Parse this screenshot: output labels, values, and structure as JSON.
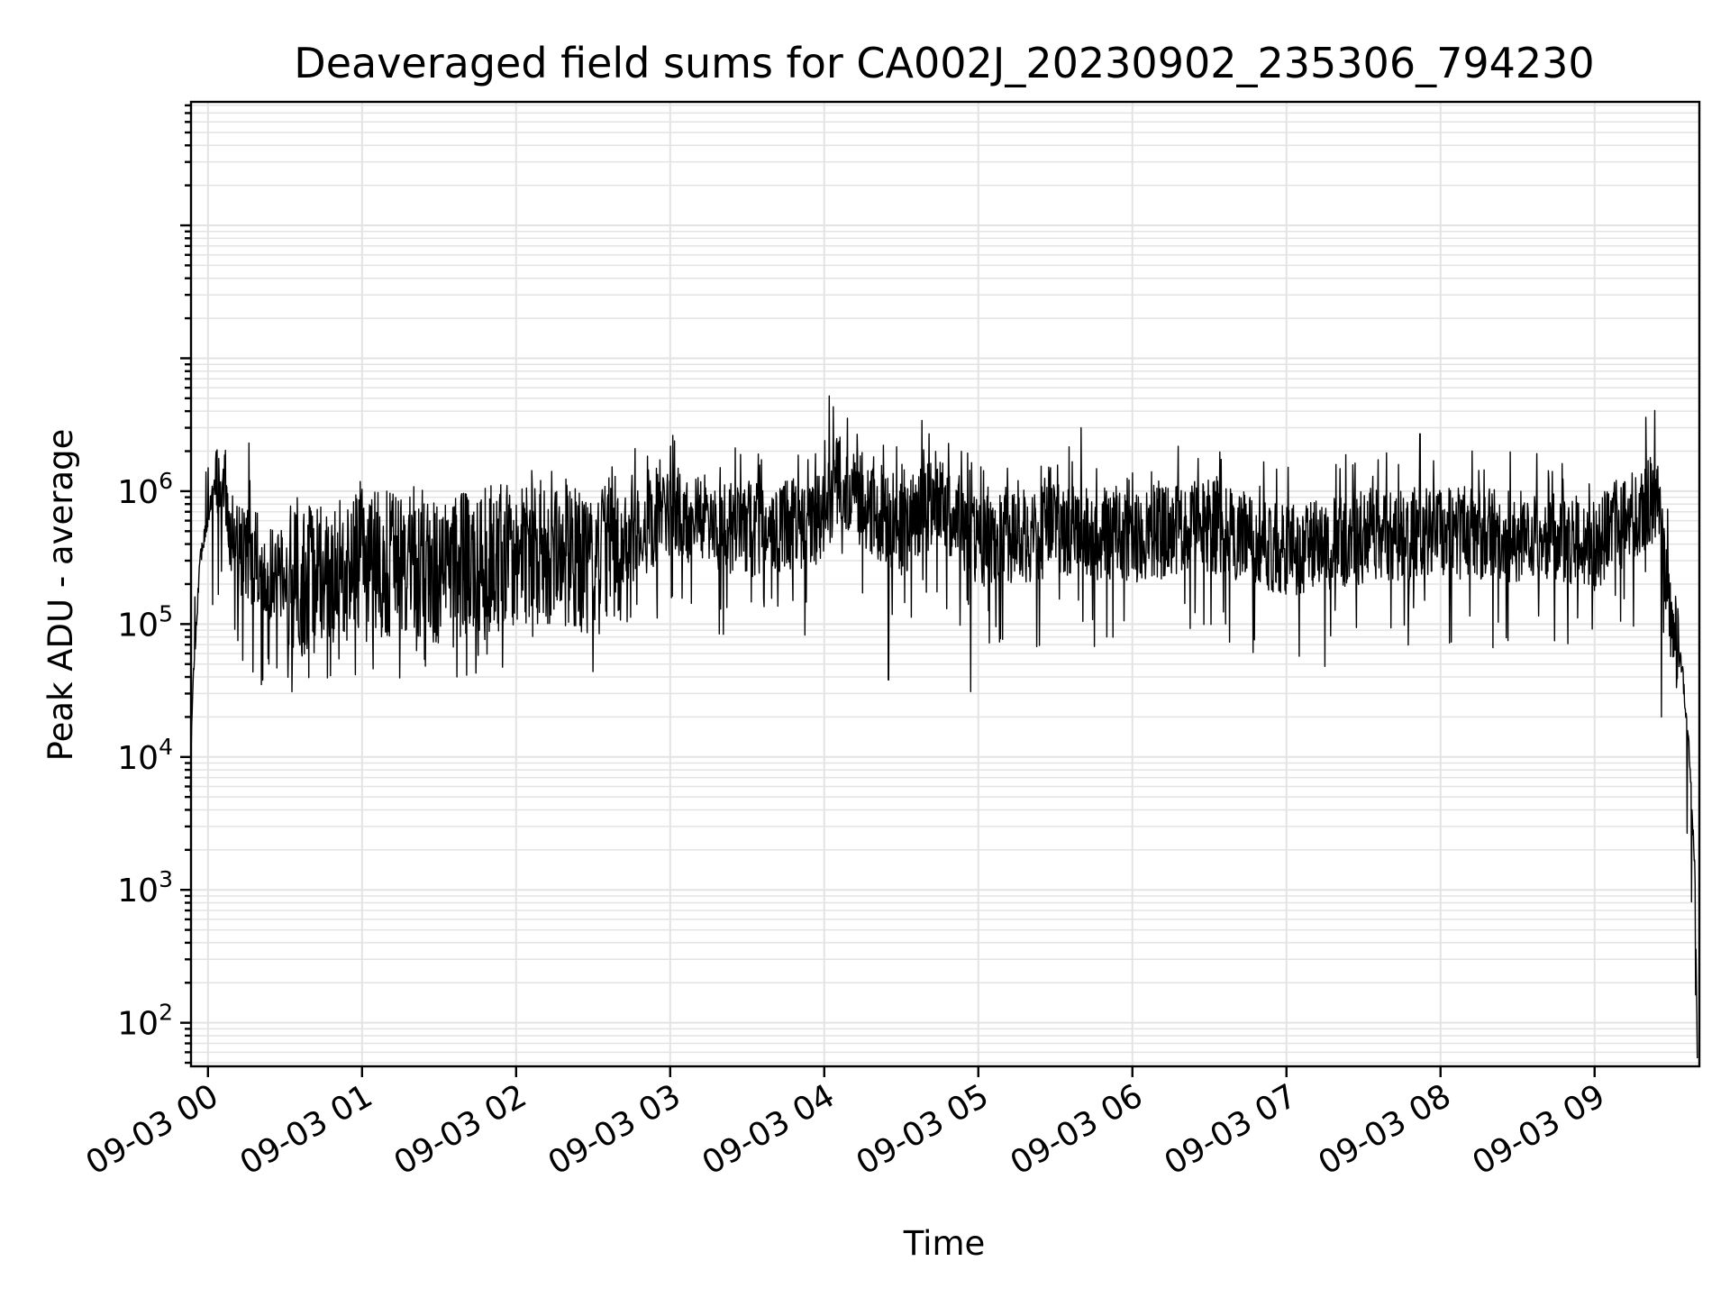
{
  "chart_data": {
    "type": "line",
    "title": "Deaveraged field sums for CA002J_20230902_235306_794230",
    "xlabel": "Time",
    "ylabel": "Peak ADU - average",
    "yscale": "log",
    "ylim": [
      47,
      850000000
    ],
    "xlim_hours": [
      -0.11,
      9.68
    ],
    "grid": true,
    "legend": "none",
    "line_color": "#000000",
    "x_ticks": [
      {
        "value": 0,
        "label": "09-03 00"
      },
      {
        "value": 1,
        "label": "09-03 01"
      },
      {
        "value": 2,
        "label": "09-03 02"
      },
      {
        "value": 3,
        "label": "09-03 03"
      },
      {
        "value": 4,
        "label": "09-03 04"
      },
      {
        "value": 5,
        "label": "09-03 05"
      },
      {
        "value": 6,
        "label": "09-03 06"
      },
      {
        "value": 7,
        "label": "09-03 07"
      },
      {
        "value": 8,
        "label": "09-03 08"
      },
      {
        "value": 9,
        "label": "09-03 09"
      }
    ],
    "y_ticks": [
      {
        "value": 100,
        "base": "10",
        "exp": "2"
      },
      {
        "value": 1000,
        "base": "10",
        "exp": "3"
      },
      {
        "value": 10000,
        "base": "10",
        "exp": "4"
      },
      {
        "value": 100000,
        "base": "10",
        "exp": "5"
      },
      {
        "value": 1000000,
        "base": "10",
        "exp": "6"
      }
    ],
    "series": [
      {
        "envelope_points": [
          {
            "t": "09-02 23:53",
            "y": 5000
          },
          {
            "t": "09-02 23:54",
            "y": 30000
          },
          {
            "t": "09-02 23:55",
            "y": 70000
          },
          {
            "t": "09-02 23:57",
            "y": 300000
          },
          {
            "t": "09-02 23:59",
            "y": 500000
          },
          {
            "t": "09-03 00:02",
            "y": 1000000
          },
          {
            "t": "09-03 00:05",
            "y": 1200000
          },
          {
            "t": "09-03 00:10",
            "y": 400000
          },
          {
            "t": "09-03 00:20",
            "y": 250000
          },
          {
            "t": "09-03 00:40",
            "y": 200000
          },
          {
            "t": "09-03 01:00",
            "y": 300000
          },
          {
            "t": "09-03 01:30",
            "y": 250000
          },
          {
            "t": "09-03 02:00",
            "y": 350000
          },
          {
            "t": "09-03 02:30",
            "y": 300000
          },
          {
            "t": "09-03 03:00",
            "y": 700000
          },
          {
            "t": "09-03 03:30",
            "y": 500000
          },
          {
            "t": "09-03 04:00",
            "y": 600000
          },
          {
            "t": "09-03 04:05",
            "y": 1200000
          },
          {
            "t": "09-03 04:30",
            "y": 500000
          },
          {
            "t": "09-03 04:45",
            "y": 900000
          },
          {
            "t": "09-03 05:00",
            "y": 400000
          },
          {
            "t": "09-03 05:30",
            "y": 500000
          },
          {
            "t": "09-03 06:00",
            "y": 450000
          },
          {
            "t": "09-03 06:30",
            "y": 550000
          },
          {
            "t": "09-03 07:00",
            "y": 350000
          },
          {
            "t": "09-03 07:30",
            "y": 450000
          },
          {
            "t": "09-03 08:00",
            "y": 500000
          },
          {
            "t": "09-03 08:30",
            "y": 450000
          },
          {
            "t": "09-03 09:00",
            "y": 400000
          },
          {
            "t": "09-03 09:20",
            "y": 800000
          },
          {
            "t": "09-03 09:25",
            "y": 1000000
          },
          {
            "t": "09-03 09:28",
            "y": 200000
          },
          {
            "t": "09-03 09:30",
            "y": 100000
          },
          {
            "t": "09-03 09:34",
            "y": 50000
          },
          {
            "t": "09-03 09:37",
            "y": 10000
          },
          {
            "t": "09-03 09:39",
            "y": 1500
          },
          {
            "t": "09-03 09:40",
            "y": 60
          }
        ],
        "spikes": [
          {
            "t": "09-03 00:16",
            "y": 2300000
          },
          {
            "t": "09-03 04:02",
            "y": 5200000
          },
          {
            "t": "09-03 04:38",
            "y": 3400000
          },
          {
            "t": "09-03 05:40",
            "y": 3000000
          },
          {
            "t": "09-03 07:52",
            "y": 2700000
          },
          {
            "t": "09-03 09:20",
            "y": 3600000
          }
        ],
        "dips": [
          {
            "t": "09-03 01:37",
            "y": 40000
          },
          {
            "t": "09-03 04:25",
            "y": 38000
          },
          {
            "t": "09-03 04:57",
            "y": 31000
          },
          {
            "t": "09-03 07:15",
            "y": 48000
          },
          {
            "t": "09-03 09:26",
            "y": 20000
          }
        ]
      }
    ]
  }
}
